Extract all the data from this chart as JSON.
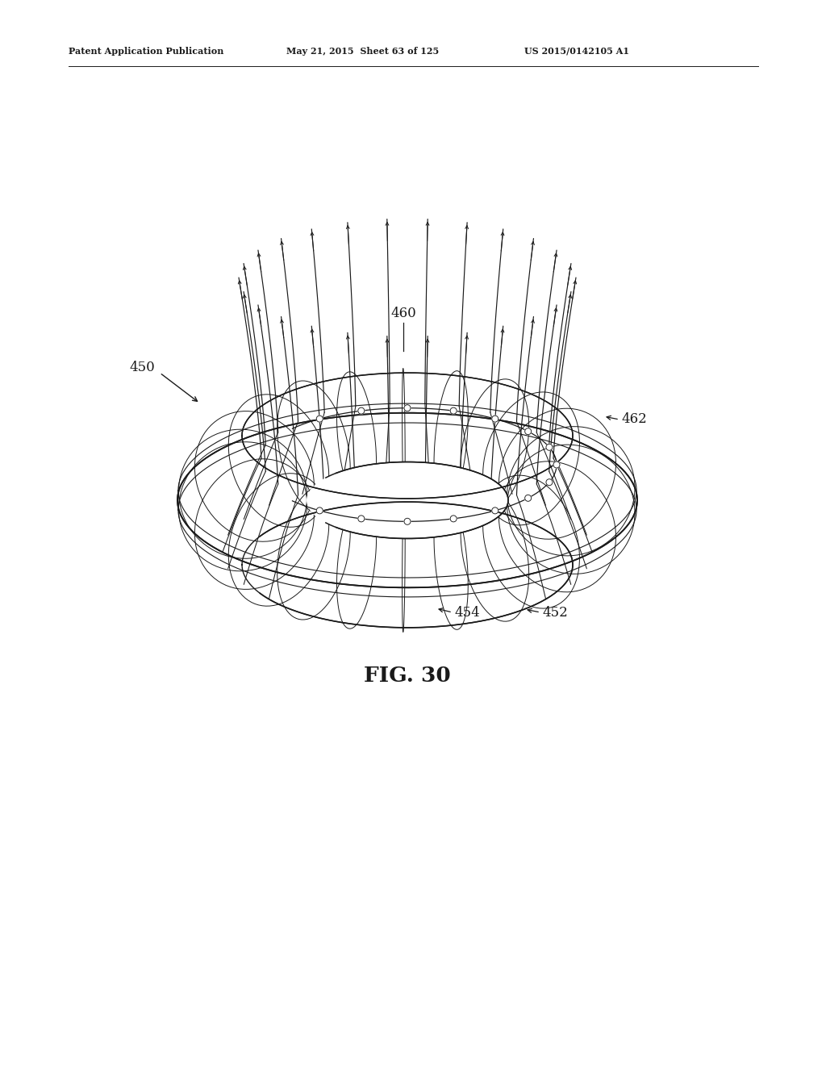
{
  "header_left": "Patent Application Publication",
  "header_mid": "May 21, 2015  Sheet 63 of 125",
  "header_right": "US 2015/0142105 A1",
  "fig_label": "FIG. 30",
  "label_450": "450",
  "label_452": "452",
  "label_454": "454",
  "label_460": "460",
  "label_462": "462",
  "bg_color": "#ffffff",
  "line_color": "#1a1a1a",
  "num_needles": 26,
  "num_profile": 22
}
